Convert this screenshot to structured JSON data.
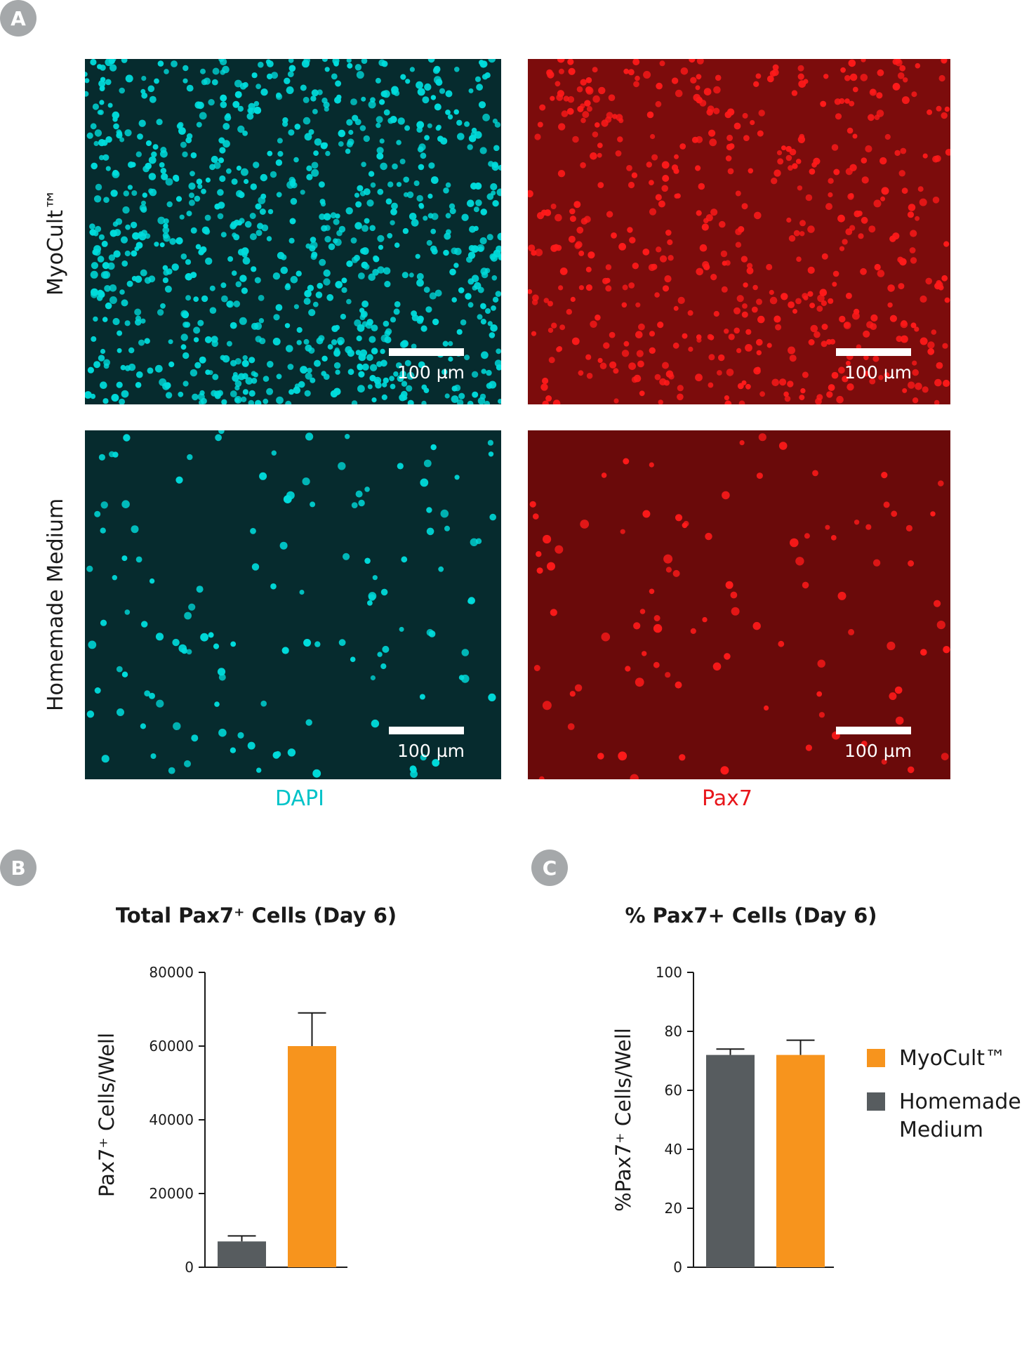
{
  "panels": {
    "a": "A",
    "b": "B",
    "c": "C"
  },
  "micrographs": {
    "row_labels": [
      "MyoCult™",
      "Homemade Medium"
    ],
    "channel_labels": [
      "DAPI",
      "Pax7"
    ],
    "scale_bar_label": "100 µm",
    "colors": {
      "dapi": "#00dcdc",
      "pax7": "#ff1a1a",
      "dapi_bg": "#062b2e",
      "pax7_bg": "#7c0c0c",
      "pax7_bg_low": "#6a0a0a"
    }
  },
  "legend": {
    "items": [
      {
        "label": "MyoCult™",
        "color": "#f7941d"
      },
      {
        "label": "Homemade Medium",
        "color": "#575c5f"
      }
    ]
  },
  "chart_data": [
    {
      "type": "bar",
      "title": "Total Pax7⁺ Cells (Day 6)",
      "ylabel": "Pax7⁺ Cells/Well",
      "xlabel": "",
      "ylim": [
        0,
        80000
      ],
      "yticks": [
        0,
        20000,
        40000,
        60000,
        80000
      ],
      "categories": [
        "Homemade Medium",
        "MyoCult™"
      ],
      "values": [
        7000,
        60000
      ],
      "errors": [
        1500,
        9000
      ],
      "colors": [
        "#575c5f",
        "#f7941d"
      ],
      "grid": false
    },
    {
      "type": "bar",
      "title": "% Pax7+ Cells (Day 6)",
      "ylabel": "%Pax7⁺ Cells/Well",
      "xlabel": "",
      "ylim": [
        0,
        100
      ],
      "yticks": [
        0,
        20,
        40,
        60,
        80,
        100
      ],
      "categories": [
        "Homemade Medium",
        "MyoCult™"
      ],
      "values": [
        72,
        72
      ],
      "errors": [
        2,
        5
      ],
      "colors": [
        "#575c5f",
        "#f7941d"
      ],
      "grid": false
    }
  ]
}
